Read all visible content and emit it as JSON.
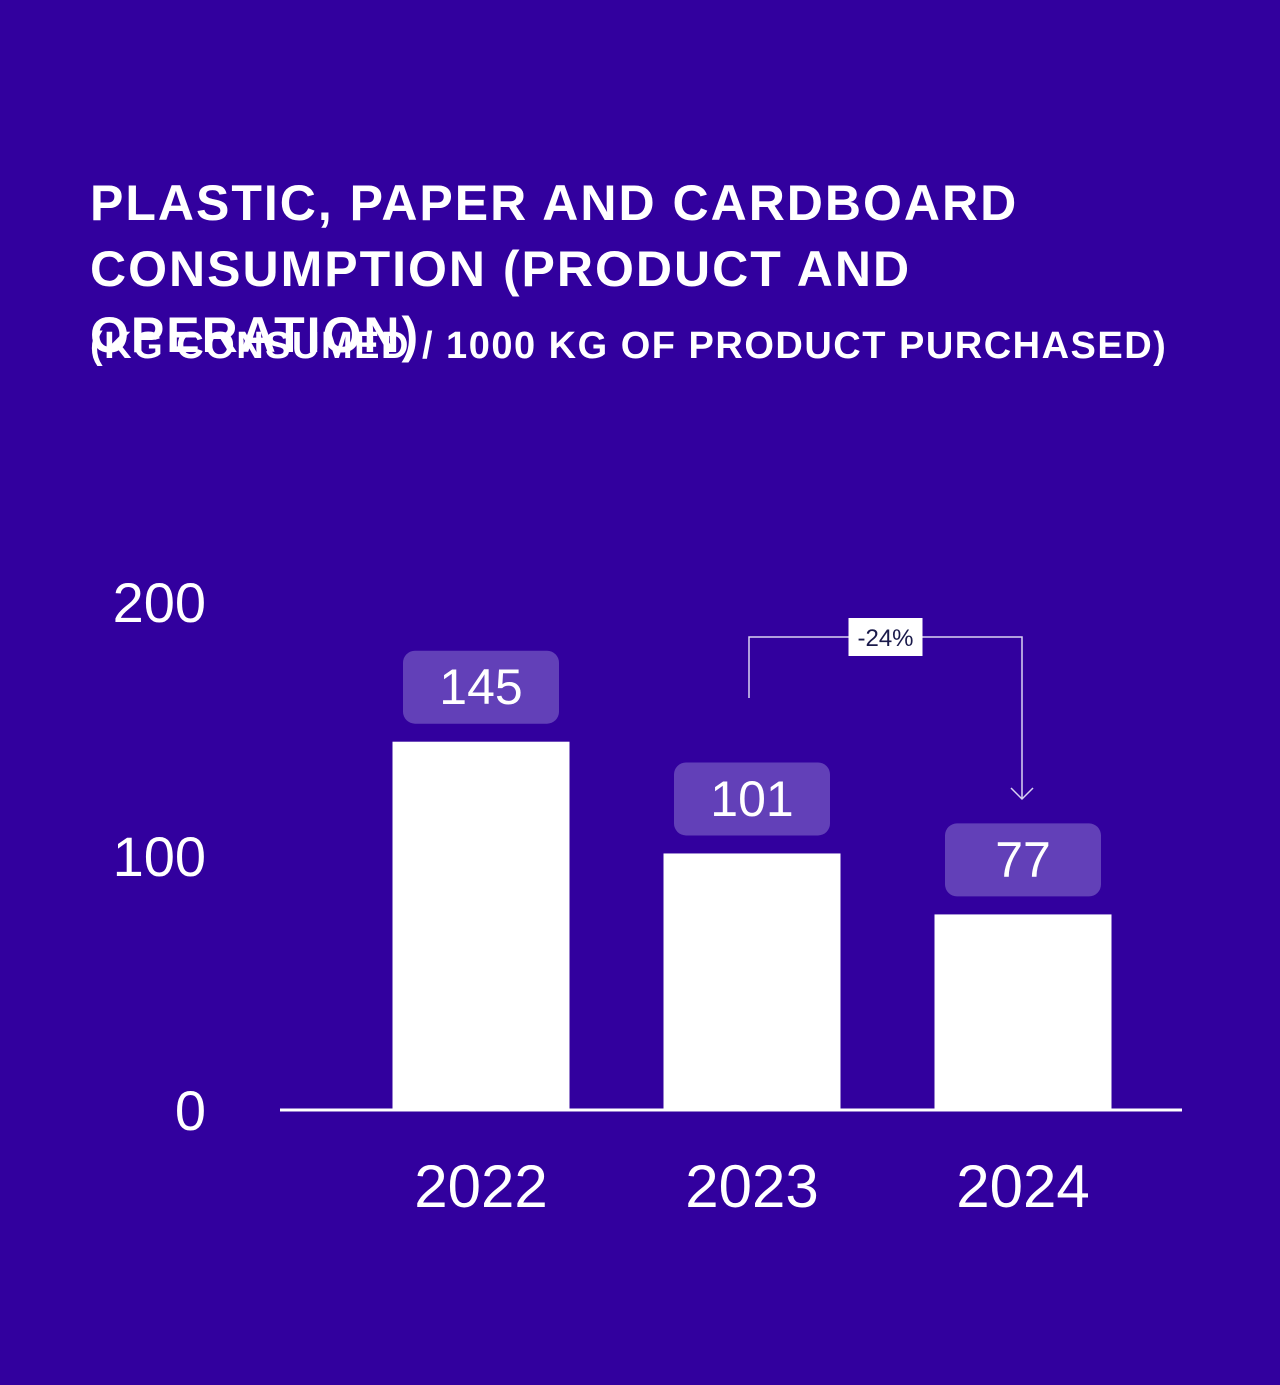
{
  "colors": {
    "background": "#32009e",
    "bar": "#ffffff",
    "label_box": "#6240b8",
    "annotation_box": "#ffffff",
    "annotation_text": "#1a1a4a"
  },
  "chart_data": {
    "type": "bar",
    "title": "PLASTIC, PAPER AND CARDBOARD CONSUMPTION (PRODUCT AND OPERATION)",
    "subtitle": "(KG CONSUMED / 1000 KG OF PRODUCT PURCHASED)",
    "categories": [
      "2022",
      "2023",
      "2024"
    ],
    "values": [
      145,
      101,
      77
    ],
    "value_labels": [
      "145",
      "101",
      "77"
    ],
    "ylim": [
      0,
      200
    ],
    "yticks": [
      "0",
      "100",
      "200"
    ],
    "grid": false,
    "annotation": {
      "text": "-24%",
      "from": "2023",
      "to": "2024"
    }
  }
}
